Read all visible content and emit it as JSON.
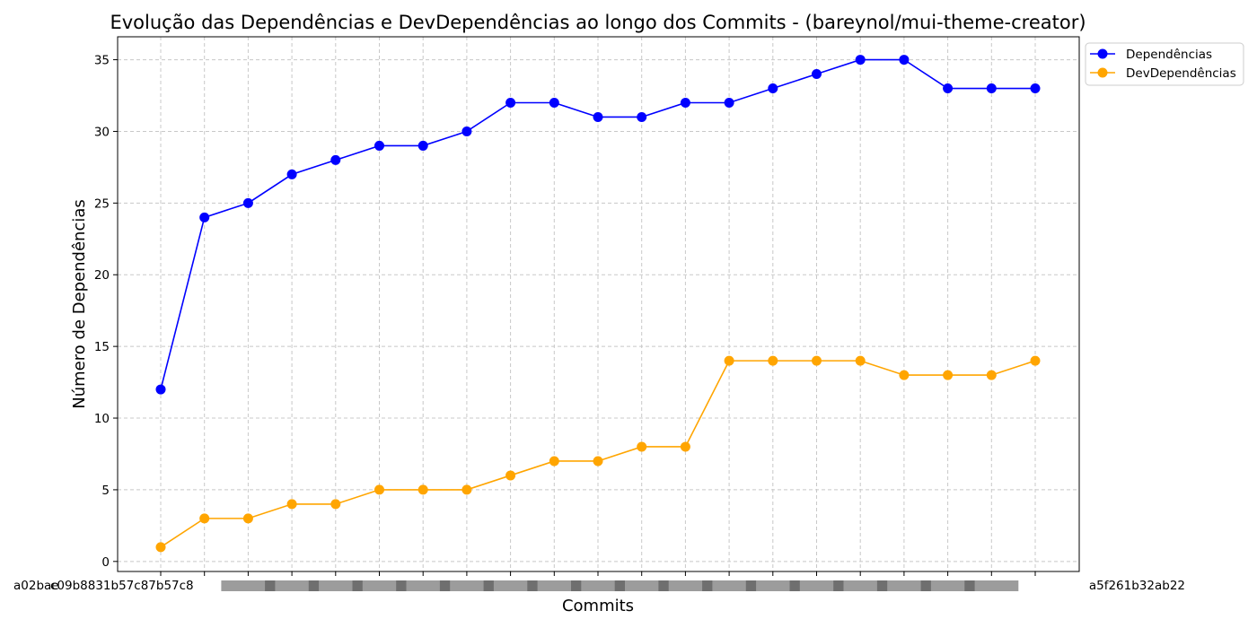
{
  "chart_data": {
    "type": "line",
    "title": "Evolução das Dependências e DevDependências ao longo dos Commits - (bareynol/mui-theme-creator)",
    "xlabel": "Commits",
    "ylabel": "Número de Dependências",
    "x_tick_labels_visible": [
      "a02bae",
      "c09b8831b57c87b57c8"
    ],
    "x_tick_labels_last": "a5f261b32ab22",
    "ylim": [
      -0.7,
      36.6
    ],
    "yticks": [
      0,
      5,
      10,
      15,
      20,
      25,
      30,
      35
    ],
    "grid": true,
    "legend_position": "top-right outside",
    "series": [
      {
        "name": "Dependências",
        "color": "#0000ff",
        "values": [
          12,
          24,
          25,
          27,
          28,
          29,
          29,
          30,
          32,
          32,
          31,
          31,
          32,
          32,
          33,
          34,
          35,
          35,
          33,
          33,
          33
        ]
      },
      {
        "name": "DevDependências",
        "color": "#ffa500",
        "values": [
          1,
          3,
          3,
          4,
          4,
          5,
          5,
          5,
          6,
          7,
          7,
          8,
          8,
          14,
          14,
          14,
          14,
          13,
          13,
          13,
          14
        ]
      }
    ]
  }
}
